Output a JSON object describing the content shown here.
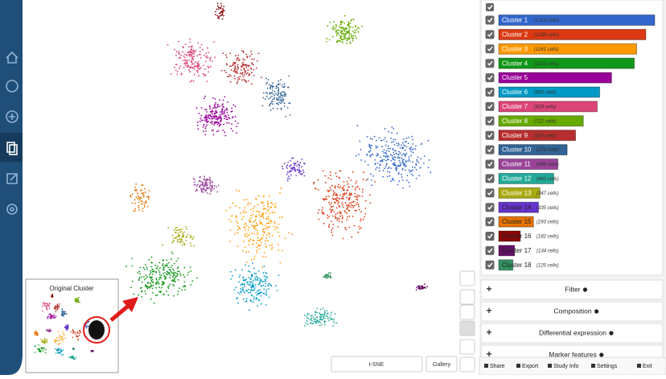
{
  "clusters": [
    {
      "name": "Cluster 1",
      "cells": 1313,
      "cells_label": "(1313 cells)",
      "color": "#3366cc",
      "checked": true
    },
    {
      "name": "Cluster 2",
      "cells": 1238,
      "cells_label": "(1238 cells)",
      "color": "#dc3912",
      "checked": true
    },
    {
      "name": "Cluster 3",
      "cells": 1161,
      "cells_label": "(1161 cells)",
      "color": "#ff9900",
      "checked": true
    },
    {
      "name": "Cluster 4",
      "cells": 1141,
      "cells_label": "(1141 cells)",
      "color": "#109618",
      "checked": true
    },
    {
      "name": "Cluster 5",
      "cells": 950,
      "cells_label": null,
      "color": "#990099",
      "checked": true
    },
    {
      "name": "Cluster 6",
      "cells": 850,
      "cells_label": "(850 cells)",
      "color": "#0099c6",
      "checked": true
    },
    {
      "name": "Cluster 7",
      "cells": 829,
      "cells_label": "(829 cells)",
      "color": "#dd4477",
      "checked": true
    },
    {
      "name": "Cluster 8",
      "cells": 712,
      "cells_label": "(712 cells)",
      "color": "#66aa00",
      "checked": true
    },
    {
      "name": "Cluster 9",
      "cells": 647,
      "cells_label": "(647 cells)",
      "color": "#b82e2e",
      "checked": true
    },
    {
      "name": "Cluster 10",
      "cells": 576,
      "cells_label": "(576 cells)",
      "color": "#316395",
      "checked": true
    },
    {
      "name": "Cluster 11",
      "cells": 498,
      "cells_label": "(498 cells)",
      "color": "#994499",
      "checked": true
    },
    {
      "name": "Cluster 12",
      "cells": 463,
      "cells_label": "(463 cells)",
      "color": "#22aa99",
      "checked": true
    },
    {
      "name": "Cluster 13",
      "cells": 347,
      "cells_label": "(347 cells)",
      "color": "#aaaa11",
      "checked": true
    },
    {
      "name": "Cluster 14",
      "cells": 335,
      "cells_label": "(335 cells)",
      "color": "#6633cc",
      "checked": true
    },
    {
      "name": "Cluster 15",
      "cells": 293,
      "cells_label": "(293 cells)",
      "color": "#e67300",
      "checked": true
    },
    {
      "name": "Cluster 16",
      "cells": 182,
      "cells_label": "(182 cells)",
      "color": "#8b0707",
      "checked": true
    },
    {
      "name": "Cluster 17",
      "cells": 134,
      "cells_label": "(134 cells)",
      "color": "#651067",
      "checked": true
    },
    {
      "name": "Cluster 18",
      "cells": 120,
      "cells_label": "(120 cells)",
      "color": "#329262",
      "checked": true
    }
  ],
  "sections": [
    "Filter",
    "Composition",
    "Differential expression",
    "Marker features"
  ],
  "plot": {
    "embedding": "t-SNE",
    "gallery_button": "Gallery",
    "inset_title": "Original Cluster"
  },
  "footer_buttons": [
    "Share",
    "Export",
    "Study Info",
    "Settings",
    "Exit"
  ]
}
